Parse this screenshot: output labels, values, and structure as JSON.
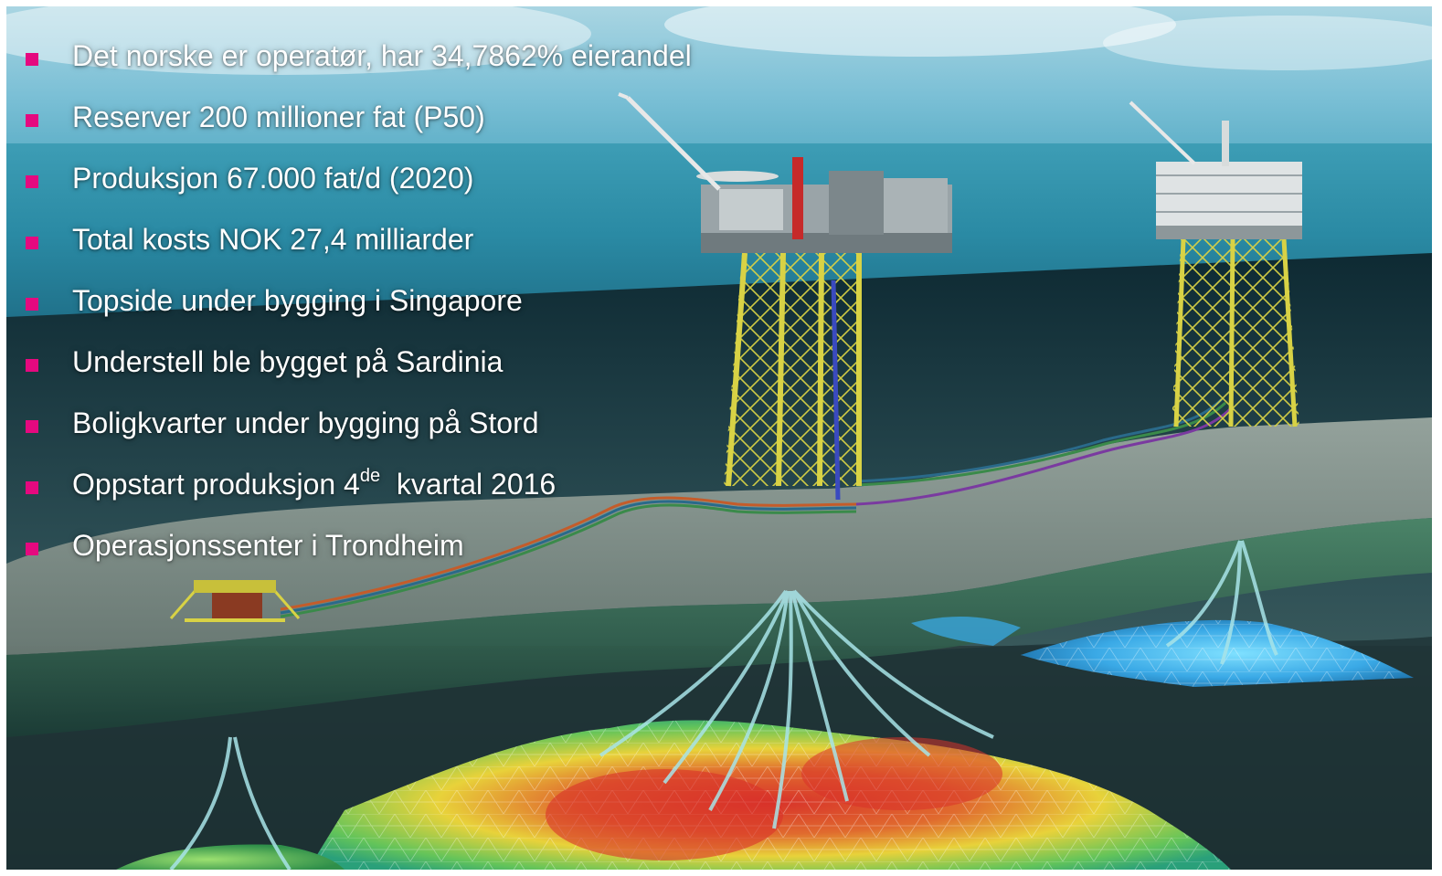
{
  "bullets": [
    {
      "text": "Det norske er operatør, har 34,7862% eierandel"
    },
    {
      "text": "Reserver 200 millioner fat (P50)"
    },
    {
      "text": "Produksjon 67.000 fat/d (2020)"
    },
    {
      "text": "Total kosts NOK 27,4 milliarder"
    },
    {
      "text": "Topside under bygging i Singapore"
    },
    {
      "text": "Understell ble bygget på Sardinia"
    },
    {
      "text": "Boligkvarter under bygging på Stord"
    },
    {
      "text_before": "Oppstart produksjon 4",
      "superscript": "de",
      "text_after": "  kvartal 2016"
    },
    {
      "text": "Operasjonssenter i Trondheim"
    }
  ],
  "colors": {
    "bullet_accent": "#e5097f",
    "text": "#ffffff",
    "sea_surface": "#2f8fa8",
    "seabed": "#7e8b86",
    "reservoir_hot": "#d8322a",
    "reservoir_warm": "#e8d23a",
    "reservoir_cool": "#3aa9e6",
    "jacket": "#d8d245"
  }
}
